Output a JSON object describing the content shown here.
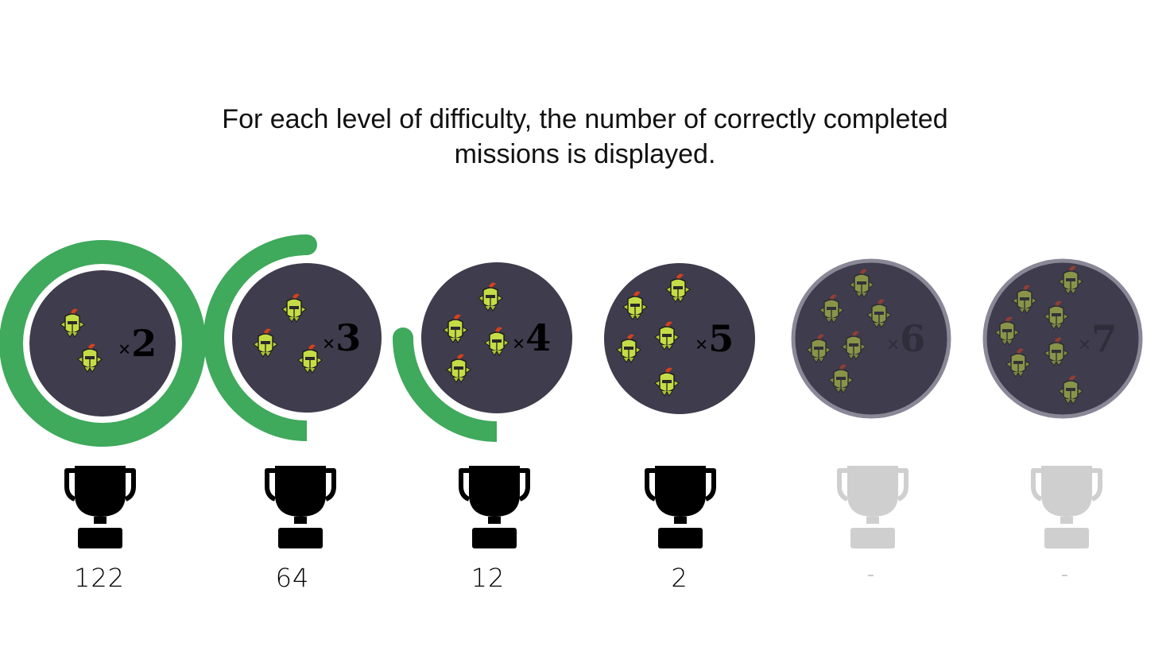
{
  "title": {
    "line1": "For each level of difficulty, the number of correctly completed",
    "line2": "missions is displayed."
  },
  "colors": {
    "disc": "#3f3c4d",
    "progress": "#3fa95c",
    "locked_ring": "#8a8796",
    "trophy_unlocked": "#000000",
    "trophy_locked": "#cfcfcf"
  },
  "icons": {
    "enemy": "goblin-knight-icon",
    "trophy": "trophy-icon"
  },
  "levels": [
    {
      "multiplier_symbol": "×",
      "multiplier": "2",
      "count": "122",
      "enemies": 2,
      "progress": 1.0,
      "unlocked": true
    },
    {
      "multiplier_symbol": "×",
      "multiplier": "3",
      "count": "64",
      "enemies": 3,
      "progress": 0.5,
      "unlocked": true
    },
    {
      "multiplier_symbol": "×",
      "multiplier": "4",
      "count": "12",
      "enemies": 4,
      "progress": 0.25,
      "unlocked": true
    },
    {
      "multiplier_symbol": "×",
      "multiplier": "5",
      "count": "2",
      "enemies": 5,
      "progress": 0,
      "unlocked": true
    },
    {
      "multiplier_symbol": "×",
      "multiplier": "6",
      "count": "-",
      "enemies": 6,
      "progress": 0,
      "unlocked": false
    },
    {
      "multiplier_symbol": "×",
      "multiplier": "7",
      "count": "-",
      "enemies": 7,
      "progress": 0,
      "unlocked": false
    }
  ]
}
